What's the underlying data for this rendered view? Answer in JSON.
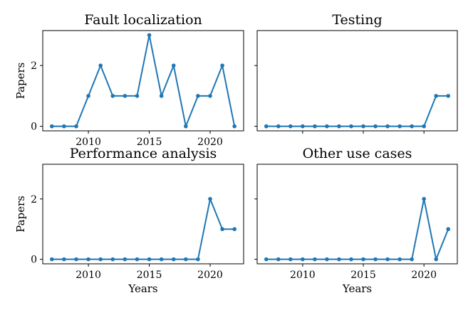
{
  "chart_data": [
    {
      "type": "line",
      "title": "Fault localization",
      "xlabel": "",
      "ylabel": "Papers",
      "x": [
        2007,
        2008,
        2009,
        2010,
        2011,
        2012,
        2013,
        2014,
        2015,
        2016,
        2017,
        2018,
        2019,
        2020,
        2021,
        2022
      ],
      "series": [
        {
          "values": [
            0,
            0,
            0,
            1,
            2,
            1,
            1,
            1,
            3,
            1,
            2,
            0,
            1,
            1,
            2,
            0
          ]
        }
      ],
      "xticks": [
        "2010",
        "2015",
        "2020"
      ],
      "yticks": [
        "0",
        "2"
      ],
      "xlim": [
        2006.25,
        2022.75
      ],
      "ylim": [
        -0.15,
        3.15
      ]
    },
    {
      "type": "line",
      "title": "Testing",
      "xlabel": "",
      "ylabel": "",
      "x": [
        2007,
        2008,
        2009,
        2010,
        2011,
        2012,
        2013,
        2014,
        2015,
        2016,
        2017,
        2018,
        2019,
        2020,
        2021,
        2022
      ],
      "series": [
        {
          "values": [
            0,
            0,
            0,
            0,
            0,
            0,
            0,
            0,
            0,
            0,
            0,
            0,
            0,
            0,
            1,
            1
          ]
        }
      ],
      "xticks": [],
      "yticks": [],
      "xlim": [
        2006.25,
        2022.75
      ],
      "ylim": [
        -0.15,
        3.15
      ]
    },
    {
      "type": "line",
      "title": "Performance analysis",
      "xlabel": "Years",
      "ylabel": "Papers",
      "x": [
        2007,
        2008,
        2009,
        2010,
        2011,
        2012,
        2013,
        2014,
        2015,
        2016,
        2017,
        2018,
        2019,
        2020,
        2021,
        2022
      ],
      "series": [
        {
          "values": [
            0,
            0,
            0,
            0,
            0,
            0,
            0,
            0,
            0,
            0,
            0,
            0,
            0,
            2,
            1,
            1
          ]
        }
      ],
      "xticks": [
        "2010",
        "2015",
        "2020"
      ],
      "yticks": [
        "0",
        "2"
      ],
      "xlim": [
        2006.25,
        2022.75
      ],
      "ylim": [
        -0.15,
        3.15
      ]
    },
    {
      "type": "line",
      "title": "Other use cases",
      "xlabel": "Years",
      "ylabel": "",
      "x": [
        2007,
        2008,
        2009,
        2010,
        2011,
        2012,
        2013,
        2014,
        2015,
        2016,
        2017,
        2018,
        2019,
        2020,
        2021,
        2022
      ],
      "series": [
        {
          "values": [
            0,
            0,
            0,
            0,
            0,
            0,
            0,
            0,
            0,
            0,
            0,
            0,
            0,
            2,
            0,
            1
          ]
        }
      ],
      "xticks": [
        "2010",
        "2015",
        "2020"
      ],
      "yticks": [],
      "xlim": [
        2006.25,
        2022.75
      ],
      "ylim": [
        -0.15,
        3.15
      ]
    }
  ],
  "colors": {
    "line": "#1f77b4"
  }
}
